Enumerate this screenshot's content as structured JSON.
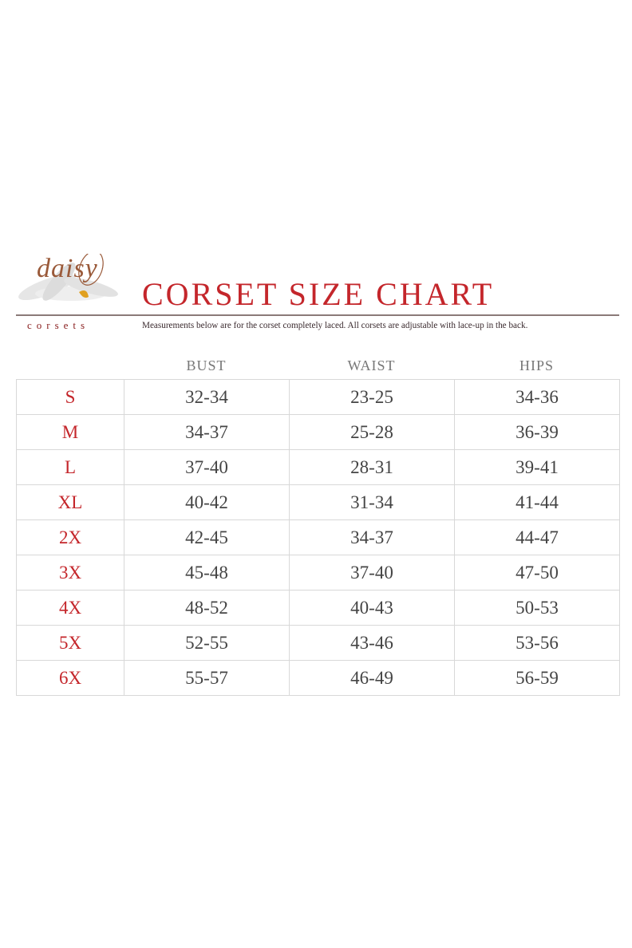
{
  "logo": {
    "script": "daisy",
    "sub": "corsets"
  },
  "title": "CORSET SIZE CHART",
  "subtitle": "Measurements below are for the corset completely laced.  All corsets are adjustable with lace-up in the back.",
  "colors": {
    "accent": "#c4262b",
    "text": "#444444",
    "rule": "#8a7a78"
  },
  "columns": [
    "BUST",
    "WAIST",
    "HIPS"
  ],
  "rows": [
    {
      "size": "S",
      "bust": "32-34",
      "waist": "23-25",
      "hips": "34-36"
    },
    {
      "size": "M",
      "bust": "34-37",
      "waist": "25-28",
      "hips": "36-39"
    },
    {
      "size": "L",
      "bust": "37-40",
      "waist": "28-31",
      "hips": "39-41"
    },
    {
      "size": "XL",
      "bust": "40-42",
      "waist": "31-34",
      "hips": "41-44"
    },
    {
      "size": "2X",
      "bust": "42-45",
      "waist": "34-37",
      "hips": "44-47"
    },
    {
      "size": "3X",
      "bust": "45-48",
      "waist": "37-40",
      "hips": "47-50"
    },
    {
      "size": "4X",
      "bust": "48-52",
      "waist": "40-43",
      "hips": "50-53"
    },
    {
      "size": "5X",
      "bust": "52-55",
      "waist": "43-46",
      "hips": "53-56"
    },
    {
      "size": "6X",
      "bust": "55-57",
      "waist": "46-49",
      "hips": "56-59"
    }
  ]
}
